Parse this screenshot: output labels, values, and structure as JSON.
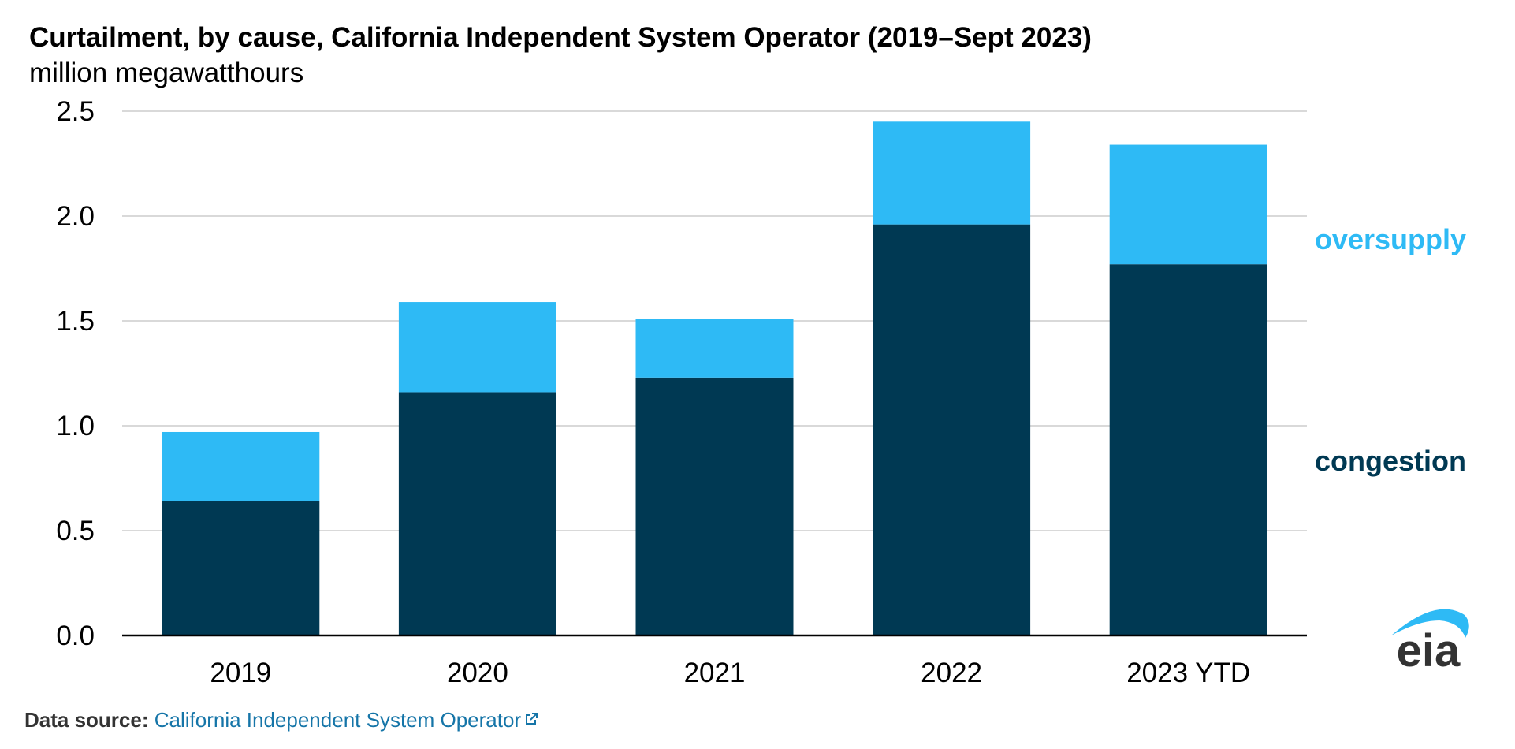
{
  "header": {
    "title": "Curtailment, by cause, California Independent System Operator (2019–Sept 2023)",
    "subtitle": "million megawatthours"
  },
  "footer": {
    "source_label": "Data source:",
    "source_link_text": "California Independent System Operator",
    "link_icon": "external-link-icon"
  },
  "logo": {
    "text": "eia",
    "swoosh_color": "#2ebaf5",
    "text_color": "#333333"
  },
  "colors": {
    "congestion": "#003953",
    "oversupply": "#2ebaf5",
    "grid": "#d9d9d9",
    "axis": "#000000"
  },
  "chart_data": {
    "type": "bar",
    "stacked": true,
    "categories": [
      "2019",
      "2020",
      "2021",
      "2022",
      "2023 YTD"
    ],
    "series": [
      {
        "name": "congestion",
        "values": [
          0.64,
          1.16,
          1.23,
          1.96,
          1.77
        ]
      },
      {
        "name": "oversupply",
        "values": [
          0.33,
          0.43,
          0.28,
          0.49,
          0.57
        ]
      }
    ],
    "yticks": [
      "0.0",
      "0.5",
      "1.0",
      "1.5",
      "2.0",
      "2.5"
    ],
    "ylim": [
      0,
      2.5
    ],
    "grid": true,
    "legend": "right, inline labels"
  }
}
